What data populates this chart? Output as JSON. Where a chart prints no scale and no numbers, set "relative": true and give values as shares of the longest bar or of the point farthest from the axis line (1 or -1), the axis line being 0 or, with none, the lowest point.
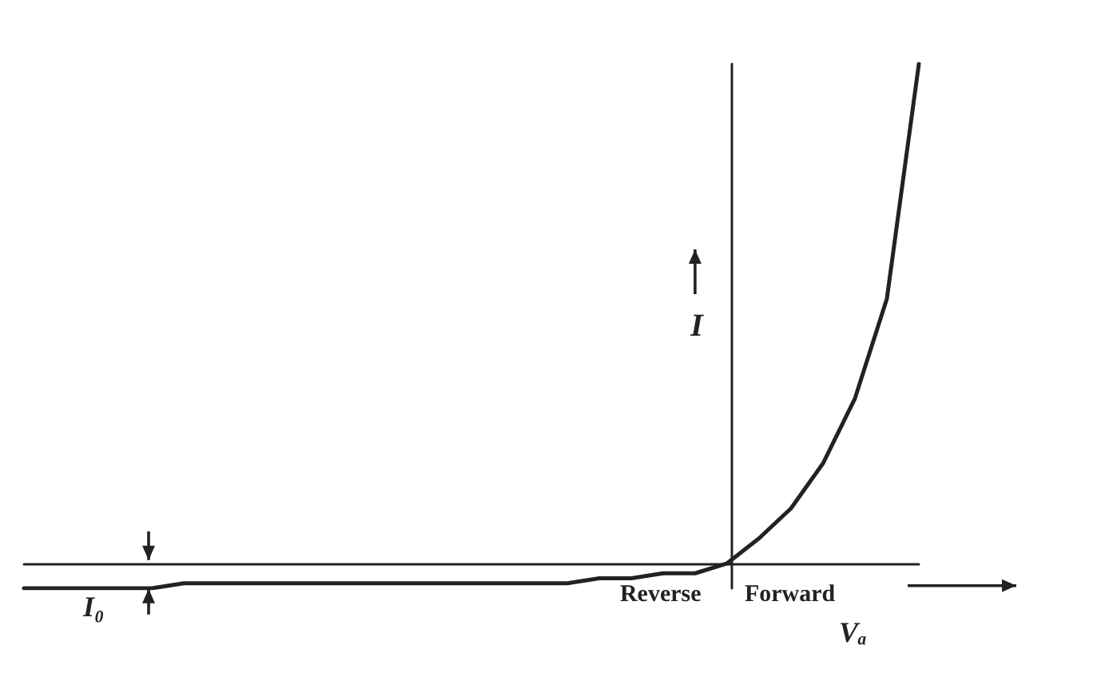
{
  "chart_data": {
    "type": "line",
    "relative": true,
    "xlabel": "Vₐ",
    "ylabel": "I",
    "categories": [
      null,
      null,
      null,
      null,
      null,
      null,
      null,
      null,
      null,
      null,
      null,
      null,
      null,
      null,
      null,
      null,
      null,
      null,
      null,
      null,
      null,
      null,
      null,
      null,
      null,
      null,
      null,
      null,
      null
    ],
    "values": [
      -0.05,
      -0.05,
      -0.05,
      -0.05,
      -0.05,
      -0.04,
      -0.04,
      -0.04,
      -0.04,
      -0.04,
      -0.04,
      -0.04,
      -0.04,
      -0.04,
      -0.04,
      -0.04,
      -0.04,
      -0.04,
      -0.03,
      -0.03,
      -0.02,
      -0.02,
      0,
      0.05,
      0.11,
      0.2,
      0.33,
      0.53,
      1
    ],
    "color": "#222222",
    "line_style": "solid",
    "marker": "none",
    "grid": false,
    "annotations": [
      "Reverse",
      "Forward",
      "I₀"
    ]
  }
}
